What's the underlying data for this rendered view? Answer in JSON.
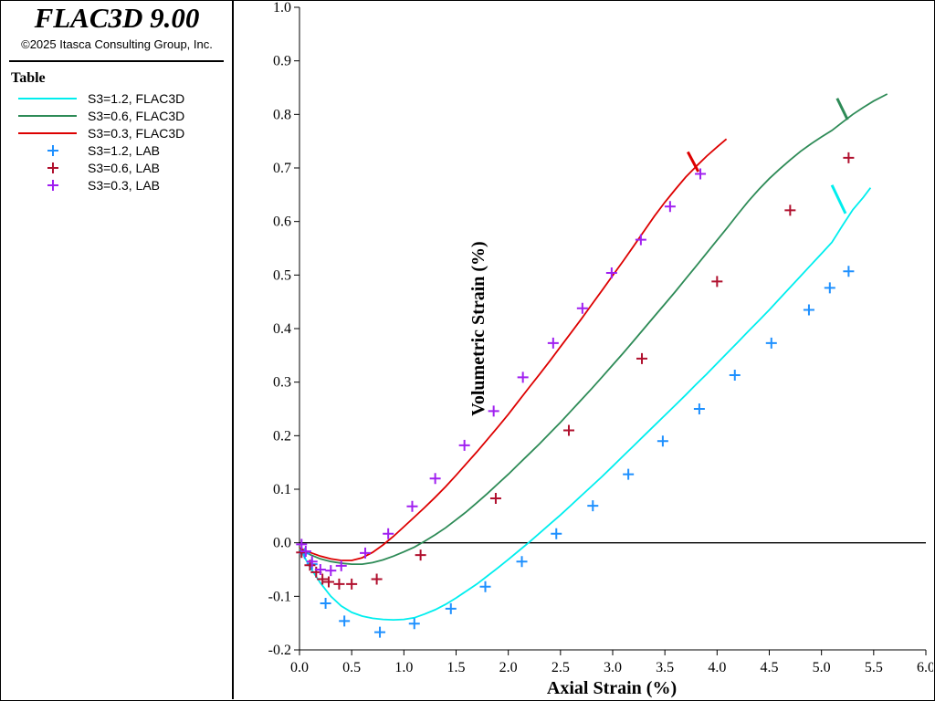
{
  "app": {
    "title": "FLAC3D 9.00",
    "copyright": "©2025 Itasca Consulting Group, Inc."
  },
  "legend": {
    "title": "Table",
    "items": [
      {
        "label": "S3=1.2, FLAC3D",
        "kind": "line",
        "color": "#00eeee"
      },
      {
        "label": "S3=0.6, FLAC3D",
        "kind": "line",
        "color": "#2e8b57"
      },
      {
        "label": "S3=0.3, FLAC3D",
        "kind": "line",
        "color": "#dd0000"
      },
      {
        "label": "S3=1.2, LAB",
        "kind": "marker",
        "color": "#1e90ff"
      },
      {
        "label": "S3=0.6, LAB",
        "kind": "marker",
        "color": "#b0102e"
      },
      {
        "label": "S3=0.3, LAB",
        "kind": "marker",
        "color": "#a020f0"
      }
    ]
  },
  "chart_data": {
    "type": "line",
    "title": "",
    "xlabel": "Axial Strain (%)",
    "ylabel": "Volumetric Strain (%)",
    "xlim": [
      0,
      6.0
    ],
    "ylim": [
      -0.2,
      1.0
    ],
    "xticks": [
      "0.0",
      "0.5",
      "1.0",
      "1.5",
      "2.0",
      "2.5",
      "3.0",
      "3.5",
      "4.0",
      "4.5",
      "5.0",
      "5.5",
      "6.0"
    ],
    "yticks": [
      "-0.2",
      "-0.1",
      "0.0",
      "0.1",
      "0.2",
      "0.3",
      "0.4",
      "0.5",
      "0.6",
      "0.7",
      "0.8",
      "0.9",
      "1.0"
    ],
    "zero_line": true,
    "grid": false,
    "series": [
      {
        "name": "S3=1.2, FLAC3D",
        "kind": "line",
        "color": "#00eeee",
        "points": [
          [
            0,
            -0.01
          ],
          [
            0.1,
            -0.045
          ],
          [
            0.2,
            -0.075
          ],
          [
            0.3,
            -0.1
          ],
          [
            0.4,
            -0.118
          ],
          [
            0.5,
            -0.13
          ],
          [
            0.6,
            -0.137
          ],
          [
            0.7,
            -0.141
          ],
          [
            0.8,
            -0.143
          ],
          [
            0.9,
            -0.144
          ],
          [
            1.0,
            -0.143
          ],
          [
            1.1,
            -0.14
          ],
          [
            1.2,
            -0.133
          ],
          [
            1.3,
            -0.125
          ],
          [
            1.4,
            -0.115
          ],
          [
            1.5,
            -0.103
          ],
          [
            1.6,
            -0.09
          ],
          [
            1.7,
            -0.077
          ],
          [
            1.8,
            -0.062
          ],
          [
            1.9,
            -0.047
          ],
          [
            2.0,
            -0.031
          ],
          [
            2.1,
            -0.015
          ],
          [
            2.2,
            0.001
          ],
          [
            2.3,
            0.018
          ],
          [
            2.4,
            0.035
          ],
          [
            2.5,
            0.052
          ],
          [
            2.6,
            0.07
          ],
          [
            2.7,
            0.088
          ],
          [
            2.8,
            0.106
          ],
          [
            2.9,
            0.124
          ],
          [
            3.0,
            0.143
          ],
          [
            3.1,
            0.162
          ],
          [
            3.2,
            0.181
          ],
          [
            3.3,
            0.2
          ],
          [
            3.4,
            0.219
          ],
          [
            3.5,
            0.238
          ],
          [
            3.6,
            0.257
          ],
          [
            3.7,
            0.276
          ],
          [
            3.8,
            0.296
          ],
          [
            3.9,
            0.315
          ],
          [
            4.0,
            0.335
          ],
          [
            4.1,
            0.355
          ],
          [
            4.2,
            0.375
          ],
          [
            4.3,
            0.395
          ],
          [
            4.4,
            0.415
          ],
          [
            4.5,
            0.435
          ],
          [
            4.6,
            0.456
          ],
          [
            4.7,
            0.477
          ],
          [
            4.8,
            0.498
          ],
          [
            4.9,
            0.519
          ],
          [
            5.0,
            0.54
          ],
          [
            5.1,
            0.561
          ],
          [
            5.2,
            0.592
          ],
          [
            5.3,
            0.622
          ],
          [
            5.4,
            0.645
          ],
          [
            5.47,
            0.663
          ]
        ],
        "tick": [
          [
            5.23,
            0.615
          ],
          [
            5.1,
            0.668
          ]
        ]
      },
      {
        "name": "S3=0.6, FLAC3D",
        "kind": "line",
        "color": "#2e8b57",
        "points": [
          [
            0,
            -0.01
          ],
          [
            0.1,
            -0.022
          ],
          [
            0.2,
            -0.03
          ],
          [
            0.3,
            -0.035
          ],
          [
            0.4,
            -0.038
          ],
          [
            0.5,
            -0.04
          ],
          [
            0.6,
            -0.04
          ],
          [
            0.7,
            -0.037
          ],
          [
            0.8,
            -0.032
          ],
          [
            0.9,
            -0.025
          ],
          [
            1.0,
            -0.017
          ],
          [
            1.1,
            -0.008
          ],
          [
            1.2,
            0.003
          ],
          [
            1.3,
            0.015
          ],
          [
            1.4,
            0.028
          ],
          [
            1.5,
            0.043
          ],
          [
            1.6,
            0.058
          ],
          [
            1.7,
            0.075
          ],
          [
            1.8,
            0.092
          ],
          [
            1.9,
            0.11
          ],
          [
            2.0,
            0.128
          ],
          [
            2.1,
            0.147
          ],
          [
            2.2,
            0.166
          ],
          [
            2.3,
            0.185
          ],
          [
            2.4,
            0.205
          ],
          [
            2.5,
            0.225
          ],
          [
            2.6,
            0.246
          ],
          [
            2.7,
            0.267
          ],
          [
            2.8,
            0.288
          ],
          [
            2.9,
            0.31
          ],
          [
            3.0,
            0.332
          ],
          [
            3.1,
            0.354
          ],
          [
            3.2,
            0.377
          ],
          [
            3.3,
            0.4
          ],
          [
            3.4,
            0.423
          ],
          [
            3.5,
            0.446
          ],
          [
            3.6,
            0.469
          ],
          [
            3.7,
            0.493
          ],
          [
            3.8,
            0.517
          ],
          [
            3.9,
            0.541
          ],
          [
            4.0,
            0.565
          ],
          [
            4.1,
            0.589
          ],
          [
            4.2,
            0.614
          ],
          [
            4.3,
            0.638
          ],
          [
            4.4,
            0.66
          ],
          [
            4.5,
            0.68
          ],
          [
            4.6,
            0.698
          ],
          [
            4.7,
            0.715
          ],
          [
            4.8,
            0.731
          ],
          [
            4.9,
            0.745
          ],
          [
            5.0,
            0.758
          ],
          [
            5.1,
            0.77
          ],
          [
            5.2,
            0.785
          ],
          [
            5.3,
            0.8
          ],
          [
            5.4,
            0.813
          ],
          [
            5.5,
            0.825
          ],
          [
            5.63,
            0.838
          ]
        ],
        "tick": [
          [
            5.25,
            0.79
          ],
          [
            5.15,
            0.83
          ]
        ]
      },
      {
        "name": "S3=0.3, FLAC3D",
        "kind": "line",
        "color": "#dd0000",
        "points": [
          [
            0,
            -0.01
          ],
          [
            0.1,
            -0.018
          ],
          [
            0.2,
            -0.025
          ],
          [
            0.3,
            -0.03
          ],
          [
            0.4,
            -0.033
          ],
          [
            0.5,
            -0.033
          ],
          [
            0.6,
            -0.028
          ],
          [
            0.7,
            -0.018
          ],
          [
            0.8,
            -0.004
          ],
          [
            0.9,
            0.012
          ],
          [
            1.0,
            0.03
          ],
          [
            1.1,
            0.048
          ],
          [
            1.2,
            0.066
          ],
          [
            1.3,
            0.085
          ],
          [
            1.4,
            0.105
          ],
          [
            1.5,
            0.126
          ],
          [
            1.6,
            0.148
          ],
          [
            1.7,
            0.17
          ],
          [
            1.8,
            0.193
          ],
          [
            1.9,
            0.216
          ],
          [
            2.0,
            0.24
          ],
          [
            2.1,
            0.265
          ],
          [
            2.2,
            0.29
          ],
          [
            2.3,
            0.315
          ],
          [
            2.4,
            0.34
          ],
          [
            2.5,
            0.366
          ],
          [
            2.6,
            0.392
          ],
          [
            2.7,
            0.418
          ],
          [
            2.8,
            0.445
          ],
          [
            2.9,
            0.472
          ],
          [
            3.0,
            0.499
          ],
          [
            3.1,
            0.526
          ],
          [
            3.2,
            0.554
          ],
          [
            3.3,
            0.582
          ],
          [
            3.4,
            0.61
          ],
          [
            3.5,
            0.636
          ],
          [
            3.6,
            0.66
          ],
          [
            3.7,
            0.683
          ],
          [
            3.8,
            0.703
          ],
          [
            3.9,
            0.722
          ],
          [
            4.0,
            0.739
          ],
          [
            4.09,
            0.754
          ]
        ],
        "tick": [
          [
            3.82,
            0.693
          ],
          [
            3.72,
            0.73
          ]
        ]
      },
      {
        "name": "S3=1.2, LAB",
        "kind": "marker",
        "color": "#1e90ff",
        "points": [
          [
            0.05,
            -0.02
          ],
          [
            0.12,
            -0.04
          ],
          [
            0.25,
            -0.113
          ],
          [
            0.43,
            -0.146
          ],
          [
            0.77,
            -0.167
          ],
          [
            1.1,
            -0.151
          ],
          [
            1.45,
            -0.123
          ],
          [
            1.78,
            -0.082
          ],
          [
            2.13,
            -0.035
          ],
          [
            2.46,
            0.017
          ],
          [
            2.81,
            0.069
          ],
          [
            3.15,
            0.128
          ],
          [
            3.48,
            0.19
          ],
          [
            3.83,
            0.25
          ],
          [
            4.17,
            0.313
          ],
          [
            4.52,
            0.373
          ],
          [
            4.88,
            0.435
          ],
          [
            5.08,
            0.476
          ],
          [
            5.26,
            0.507
          ]
        ]
      },
      {
        "name": "S3=0.6, LAB",
        "kind": "marker",
        "color": "#b0102e",
        "points": [
          [
            0.02,
            -0.018
          ],
          [
            0.1,
            -0.042
          ],
          [
            0.16,
            -0.055
          ],
          [
            0.22,
            -0.068
          ],
          [
            0.28,
            -0.073
          ],
          [
            0.38,
            -0.077
          ],
          [
            0.5,
            -0.077
          ],
          [
            0.74,
            -0.068
          ],
          [
            1.16,
            -0.023
          ],
          [
            1.88,
            0.083
          ],
          [
            2.58,
            0.21
          ],
          [
            3.28,
            0.344
          ],
          [
            4.0,
            0.488
          ],
          [
            4.7,
            0.621
          ],
          [
            5.26,
            0.719
          ]
        ]
      },
      {
        "name": "S3=0.3, LAB",
        "kind": "marker",
        "color": "#a020f0",
        "points": [
          [
            0.02,
            -0.003
          ],
          [
            0.06,
            -0.016
          ],
          [
            0.12,
            -0.035
          ],
          [
            0.2,
            -0.05
          ],
          [
            0.3,
            -0.052
          ],
          [
            0.4,
            -0.043
          ],
          [
            0.63,
            -0.019
          ],
          [
            0.85,
            0.017
          ],
          [
            1.08,
            0.068
          ],
          [
            1.3,
            0.12
          ],
          [
            1.58,
            0.182
          ],
          [
            1.86,
            0.246
          ],
          [
            2.14,
            0.309
          ],
          [
            2.43,
            0.373
          ],
          [
            2.71,
            0.438
          ],
          [
            2.99,
            0.504
          ],
          [
            3.27,
            0.566
          ],
          [
            3.55,
            0.628
          ],
          [
            3.84,
            0.689
          ]
        ]
      }
    ]
  }
}
